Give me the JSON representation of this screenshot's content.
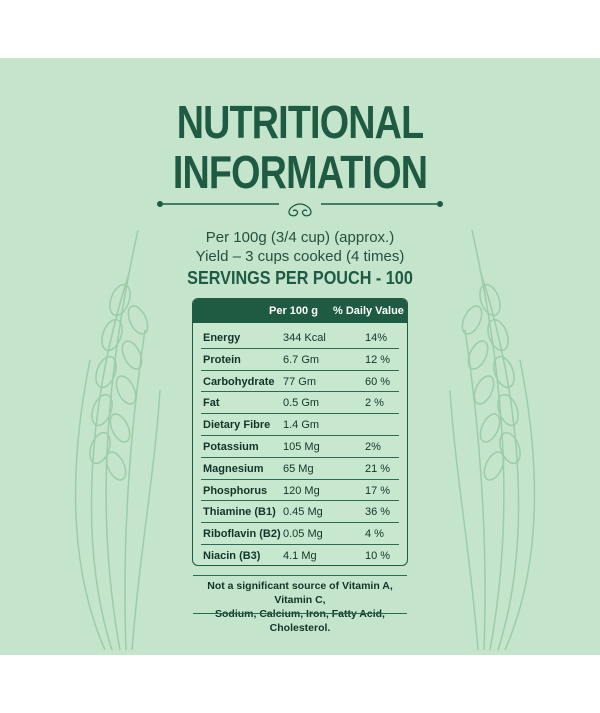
{
  "heading": {
    "line1": "NUTRITIONAL",
    "line2": "INFORMATION"
  },
  "serving_info": {
    "per": "Per 100g (3/4 cup) (approx.)",
    "yield": "Yield – 3 cups cooked (4 times)",
    "servings": "SERVINGS PER POUCH - 100"
  },
  "table": {
    "headers": [
      "Per 100 g",
      "% Daily Value"
    ],
    "rows": [
      {
        "name": "Energy",
        "value": "344 Kcal",
        "dv": "14%"
      },
      {
        "name": "Protein",
        "value": "6.7 Gm",
        "dv": "12 %"
      },
      {
        "name": "Carbohydrate",
        "value": "77 Gm",
        "dv": "60 %"
      },
      {
        "name": "Fat",
        "value": "0.5 Gm",
        "dv": "2 %"
      },
      {
        "name": "Dietary Fibre",
        "value": "1.4 Gm",
        "dv": ""
      },
      {
        "name": "Potassium",
        "value": "105 Mg",
        "dv": "2%"
      },
      {
        "name": "Magnesium",
        "value": "65 Mg",
        "dv": "21 %"
      },
      {
        "name": "Phosphorus",
        "value": "120 Mg",
        "dv": "17 %"
      },
      {
        "name": "Thiamine (B1)",
        "value": "0.45 Mg",
        "dv": "36 %"
      },
      {
        "name": "Riboflavin (B2)",
        "value": "0.05 Mg",
        "dv": "4 %"
      },
      {
        "name": "Niacin (B3)",
        "value": "4.1 Mg",
        "dv": "10 %"
      }
    ]
  },
  "footnote": {
    "line1": "Not a significant source of Vitamin A, Vitamin C,",
    "line2": "Sodium, Calcium, Iron, Fatty Acid, Cholesterol."
  },
  "colors": {
    "background": "#c4e4cc",
    "accent": "#1f5a43",
    "wheat": "#9ccca8"
  }
}
